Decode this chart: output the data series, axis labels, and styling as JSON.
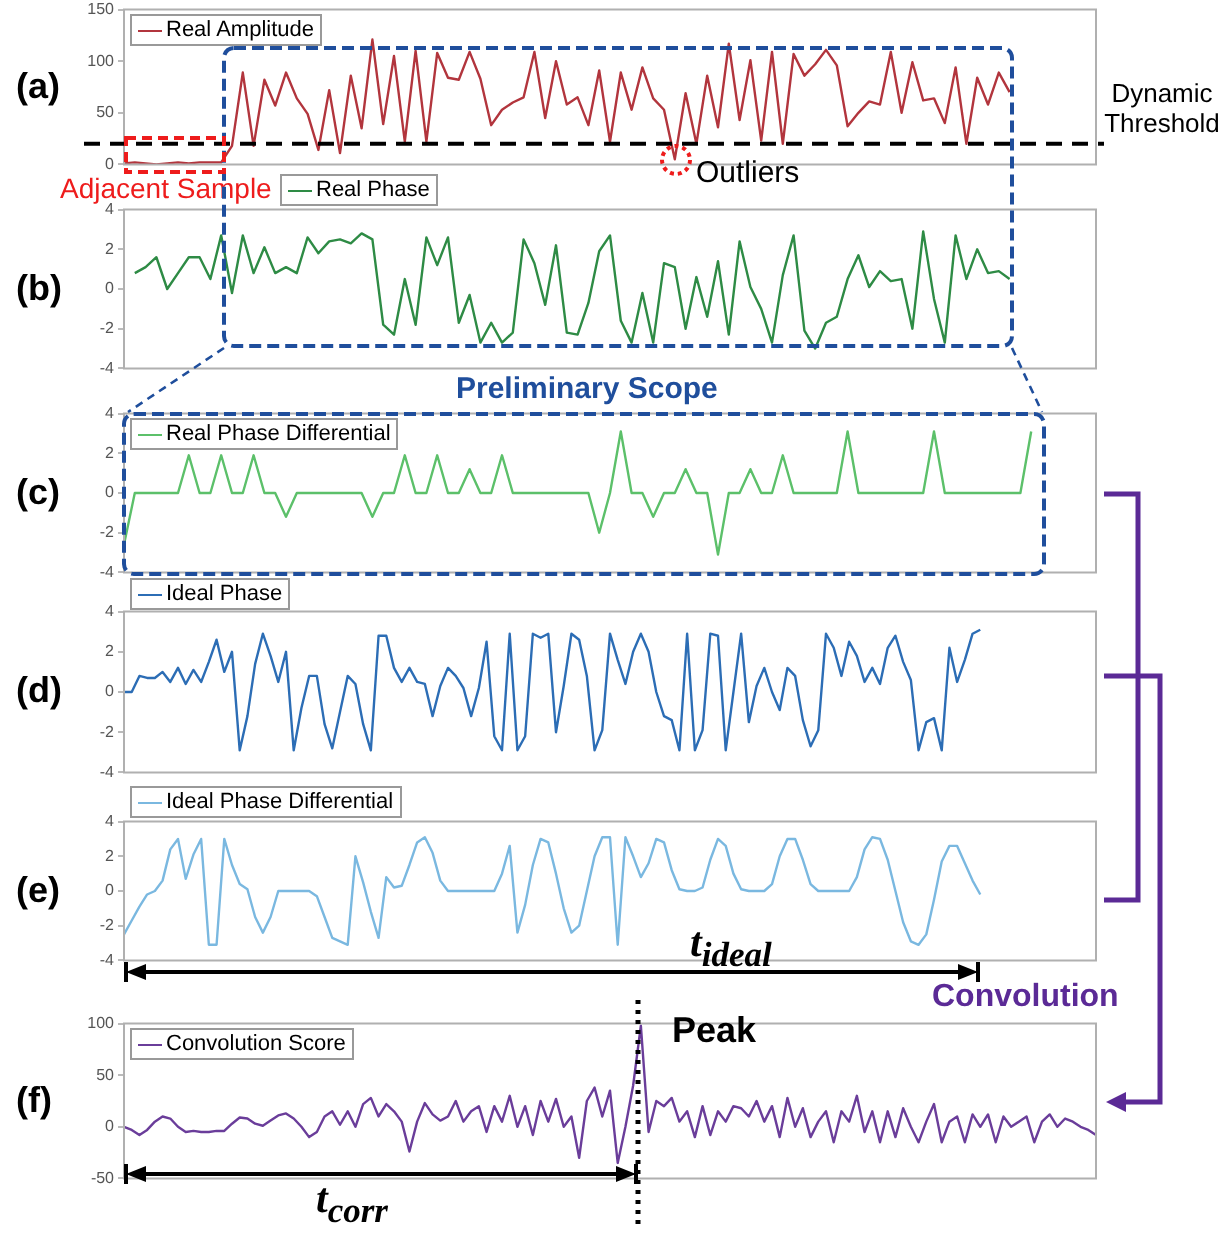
{
  "chart_data": [
    {
      "type": "line",
      "title": "(a)",
      "categories": [
        null,
        null,
        null,
        null,
        null,
        null,
        null,
        null,
        null,
        null,
        null,
        null,
        null,
        null,
        null,
        null,
        null,
        null,
        null,
        null,
        null,
        null,
        null,
        null,
        null,
        null,
        null,
        null,
        null,
        null,
        null,
        null,
        null,
        null,
        null,
        null,
        null,
        null,
        null,
        null,
        null,
        null,
        null,
        null,
        null,
        null,
        null,
        null,
        null,
        null,
        null,
        null,
        null,
        null,
        null,
        null,
        null,
        null,
        null,
        null,
        null,
        null,
        null,
        null,
        null,
        null,
        null,
        null,
        null,
        null,
        null,
        null,
        null,
        null,
        null,
        null,
        null,
        null,
        null,
        null,
        null,
        null,
        null,
        null,
        null,
        null,
        null,
        null,
        null,
        null,
        null
      ],
      "series": [
        {
          "name": "Real Amplitude",
          "color": "#b2353d",
          "values": [
            1,
            2,
            1,
            0,
            1,
            2,
            1,
            2,
            2,
            2,
            18,
            89,
            18,
            82,
            57,
            89,
            64,
            49,
            14,
            72,
            11,
            86,
            35,
            121,
            39,
            105,
            22,
            110,
            22,
            108,
            84,
            82,
            109,
            83,
            38,
            53,
            60,
            65,
            109,
            45,
            100,
            58,
            65,
            38,
            91,
            22,
            89,
            53,
            94,
            64,
            53,
            5,
            69,
            20,
            86,
            36,
            117,
            43,
            101,
            23,
            109,
            20,
            107,
            86,
            97,
            111,
            96,
            37,
            50,
            61,
            58,
            109,
            50,
            99,
            62,
            64,
            40,
            94,
            20,
            84,
            58,
            89,
            70,
            null,
            null,
            null,
            null,
            null,
            null,
            null,
            null
          ]
        }
      ],
      "ylim": [
        0,
        150
      ],
      "yticks": [
        0,
        50,
        100,
        150
      ],
      "legend": "top left",
      "tick_labels": "y",
      "ref_lines": [
        {
          "axis": "y",
          "value": 20,
          "label": "Dynamic Threshold",
          "color": "#000000",
          "line_style": "dashed"
        }
      ],
      "annotations": [
        "Adjacent Sample",
        "Outliers",
        "Preliminary Scope"
      ]
    },
    {
      "type": "line",
      "title": "(b)",
      "categories": [
        null,
        null,
        null,
        null,
        null,
        null,
        null,
        null,
        null,
        null,
        null,
        null,
        null,
        null,
        null,
        null,
        null,
        null,
        null,
        null,
        null,
        null,
        null,
        null,
        null,
        null,
        null,
        null,
        null,
        null,
        null,
        null,
        null,
        null,
        null,
        null,
        null,
        null,
        null,
        null,
        null,
        null,
        null,
        null,
        null,
        null,
        null,
        null,
        null,
        null,
        null,
        null,
        null,
        null,
        null,
        null,
        null,
        null,
        null,
        null,
        null,
        null,
        null,
        null,
        null,
        null,
        null,
        null,
        null,
        null,
        null,
        null,
        null,
        null,
        null,
        null,
        null,
        null,
        null,
        null,
        null,
        null,
        null,
        null,
        null,
        null,
        null,
        null,
        null,
        null,
        null
      ],
      "series": [
        {
          "name": "Real Phase",
          "color": "#2e8b45",
          "values": [
            null,
            0.8,
            1.1,
            1.6,
            0,
            0.8,
            1.6,
            1.6,
            0.5,
            2.7,
            -0.2,
            2.7,
            0.8,
            2.1,
            0.8,
            1.1,
            0.8,
            2.6,
            1.8,
            2.4,
            2.5,
            2.3,
            2.8,
            2.5,
            -1.8,
            -2.3,
            0.5,
            -1.8,
            2.6,
            1.2,
            2.6,
            -1.7,
            -0.3,
            -2.7,
            -1.7,
            -2.7,
            -2.2,
            2.5,
            1.3,
            -0.8,
            2.2,
            -2.2,
            -2.3,
            -0.7,
            1.9,
            2.7,
            -1.6,
            -2.7,
            -0.2,
            -2.7,
            1.3,
            1.1,
            -2,
            0.6,
            -1.4,
            1.4,
            -2.3,
            2.4,
            0.1,
            -1,
            -2.7,
            0.7,
            2.7,
            -2.1,
            -3,
            -1.7,
            -1.4,
            0.5,
            1.7,
            0.1,
            0.9,
            0.4,
            0.5,
            -2,
            2.9,
            -0.5,
            -2.7,
            2.7,
            0.5,
            2,
            0.8,
            0.9,
            0.5,
            null,
            null,
            null,
            null,
            null,
            null,
            null,
            null
          ]
        }
      ],
      "ylim": [
        -4,
        4
      ],
      "yticks": [
        -4,
        -2,
        0,
        2,
        4
      ],
      "legend": "top left",
      "tick_labels": "y"
    },
    {
      "type": "line",
      "title": "(c)",
      "categories": [
        null,
        null,
        null,
        null,
        null,
        null,
        null,
        null,
        null,
        null,
        null,
        null,
        null,
        null,
        null,
        null,
        null,
        null,
        null,
        null,
        null,
        null,
        null,
        null,
        null,
        null,
        null,
        null,
        null,
        null,
        null,
        null,
        null,
        null,
        null,
        null,
        null,
        null,
        null,
        null,
        null,
        null,
        null,
        null,
        null,
        null,
        null,
        null,
        null,
        null,
        null,
        null,
        null,
        null,
        null,
        null,
        null,
        null,
        null,
        null,
        null,
        null,
        null,
        null,
        null,
        null,
        null,
        null,
        null,
        null,
        null,
        null,
        null,
        null,
        null,
        null,
        null,
        null,
        null,
        null,
        null,
        null,
        null,
        null,
        null,
        null,
        null,
        null,
        null,
        null,
        null
      ],
      "series": [
        {
          "name": "Real Phase Differential",
          "color": "#5cc06a",
          "values": [
            -2.6,
            0,
            0,
            0,
            0,
            0,
            1.9,
            0,
            0,
            1.9,
            0,
            0,
            1.9,
            0,
            0,
            -1.2,
            0,
            0,
            0,
            0,
            0,
            0,
            0,
            -1.2,
            0,
            0,
            1.9,
            0,
            0,
            1.9,
            0,
            0,
            1.2,
            0,
            0,
            1.9,
            0,
            0,
            0,
            0,
            0,
            0,
            0,
            0,
            -2,
            0,
            3.1,
            0,
            0,
            -1.2,
            0,
            0,
            1.2,
            0,
            0,
            -3.1,
            0,
            0,
            1.2,
            0,
            0,
            1.9,
            0,
            0,
            0,
            0,
            0,
            3.1,
            0,
            0,
            0,
            0,
            0,
            0,
            0,
            3.1,
            0,
            0,
            0,
            0,
            0,
            0,
            0,
            0,
            3.1,
            null,
            null,
            null,
            null,
            null,
            null
          ]
        }
      ],
      "ylim": [
        -4,
        4
      ],
      "yticks": [
        -4,
        -2,
        0,
        2,
        4
      ],
      "legend": "top left",
      "tick_labels": "y"
    },
    {
      "type": "line",
      "title": "(d)",
      "categories": [
        null,
        null,
        null,
        null,
        null,
        null,
        null,
        null,
        null,
        null,
        null,
        null,
        null,
        null,
        null,
        null,
        null,
        null,
        null,
        null,
        null,
        null,
        null,
        null,
        null,
        null,
        null,
        null,
        null,
        null,
        null,
        null,
        null,
        null,
        null,
        null,
        null,
        null,
        null,
        null,
        null,
        null,
        null,
        null,
        null,
        null,
        null,
        null,
        null,
        null,
        null,
        null,
        null,
        null,
        null,
        null,
        null,
        null,
        null,
        null,
        null,
        null,
        null,
        null,
        null,
        null,
        null,
        null,
        null,
        null,
        null,
        null,
        null,
        null,
        null,
        null,
        null,
        null,
        null,
        null,
        null,
        null,
        null,
        null,
        null,
        null,
        null,
        null,
        null,
        null,
        null,
        null,
        null,
        null,
        null,
        null,
        null,
        null,
        null,
        null,
        null,
        null,
        null,
        null,
        null,
        null,
        null,
        null,
        null,
        null,
        null,
        null,
        null,
        null,
        null,
        null,
        null,
        null,
        null,
        null,
        null,
        null,
        null,
        null,
        null,
        null,
        null
      ],
      "series": [
        {
          "name": "Ideal Phase",
          "color": "#2c6db5",
          "values": [
            0,
            0,
            0.8,
            0.7,
            0.7,
            1,
            0.5,
            1.2,
            0.4,
            1.1,
            0.5,
            1.5,
            2.6,
            1,
            2,
            -2.9,
            -1.2,
            1.4,
            2.9,
            1.8,
            0.5,
            2,
            -2.9,
            -0.8,
            0.8,
            0.8,
            -1.6,
            -2.8,
            -1,
            0.8,
            0.4,
            -1.6,
            -2.9,
            2.8,
            2.8,
            1.2,
            0.5,
            1.2,
            0.5,
            0.4,
            -1.2,
            0.3,
            1.2,
            0.8,
            0.2,
            -1.2,
            0.2,
            2.5,
            -2.2,
            -2.9,
            2.9,
            -2.9,
            -2.2,
            2.9,
            2.7,
            2.9,
            -2,
            0.3,
            2.9,
            2.6,
            0.8,
            -2.9,
            -1.9,
            2.9,
            1.6,
            0.4,
            2,
            2.9,
            2,
            0,
            -1.2,
            -1.4,
            -2.9,
            2.9,
            -2.9,
            -1.9,
            2.9,
            2.8,
            -2.9,
            0,
            2.9,
            -1.5,
            0.3,
            1.2,
            0,
            -0.9,
            1.2,
            0.8,
            -1.4,
            -2.7,
            -1.9,
            2.9,
            2.2,
            0.8,
            2.5,
            1.8,
            0.5,
            1.2,
            0.4,
            2.2,
            2.8,
            1.5,
            0.6,
            -2.9,
            -1.5,
            -1.3,
            -2.9,
            2.2,
            0.5,
            1.6,
            2.9,
            3.1,
            null,
            null,
            null,
            null,
            null,
            null,
            null,
            null,
            null,
            null,
            null,
            null,
            null,
            null,
            null
          ]
        }
      ],
      "ylim": [
        -4,
        4
      ],
      "yticks": [
        -4,
        -2,
        0,
        2,
        4
      ],
      "legend": "top left",
      "tick_labels": "y"
    },
    {
      "type": "line",
      "title": "(e)",
      "categories": [
        null,
        null,
        null,
        null,
        null,
        null,
        null,
        null,
        null,
        null,
        null,
        null,
        null,
        null,
        null,
        null,
        null,
        null,
        null,
        null,
        null,
        null,
        null,
        null,
        null,
        null,
        null,
        null,
        null,
        null,
        null,
        null,
        null,
        null,
        null,
        null,
        null,
        null,
        null,
        null,
        null,
        null,
        null,
        null,
        null,
        null,
        null,
        null,
        null,
        null,
        null,
        null,
        null,
        null,
        null,
        null,
        null,
        null,
        null,
        null,
        null,
        null,
        null,
        null,
        null,
        null,
        null,
        null,
        null,
        null,
        null,
        null,
        null,
        null,
        null,
        null,
        null,
        null,
        null,
        null,
        null,
        null,
        null,
        null,
        null,
        null,
        null,
        null,
        null,
        null,
        null,
        null,
        null,
        null,
        null,
        null,
        null,
        null,
        null,
        null,
        null,
        null,
        null,
        null,
        null,
        null,
        null,
        null,
        null,
        null,
        null,
        null,
        null,
        null,
        null,
        null,
        null,
        null,
        null,
        null,
        null,
        null,
        null,
        null,
        null,
        null,
        null
      ],
      "series": [
        {
          "name": "Ideal Phase Differential",
          "color": "#7ab8e0",
          "values": [
            -2.5,
            -1.7,
            -0.9,
            -0.2,
            0,
            0.6,
            2.4,
            3,
            0.7,
            2.1,
            3,
            -3.1,
            -3.1,
            3,
            1.5,
            0.4,
            0.1,
            -1.5,
            -2.4,
            -1.5,
            0,
            0,
            0,
            0,
            0,
            -0.3,
            -1.5,
            -2.7,
            -2.9,
            -3.1,
            2,
            0.5,
            -1.2,
            -2.7,
            0.8,
            0.2,
            0.3,
            1.5,
            2.8,
            3.1,
            2.2,
            0.6,
            0,
            0,
            0,
            0,
            0,
            0,
            0,
            1,
            2.6,
            -2.4,
            -0.8,
            1.5,
            3,
            2.8,
            1,
            -1,
            -2.4,
            -2,
            0,
            2,
            3.1,
            3.1,
            -3.1,
            3.1,
            2,
            0.8,
            1.6,
            3,
            2.8,
            1.2,
            0.1,
            0,
            0,
            0.2,
            1.8,
            3,
            2.6,
            1,
            0.1,
            0,
            0,
            0,
            0.4,
            2,
            3,
            3,
            1.8,
            0.4,
            0,
            0,
            0,
            0,
            0,
            0.8,
            2.4,
            3.1,
            3,
            1.8,
            0,
            -1.8,
            -2.9,
            -3.1,
            -2.5,
            -0.5,
            1.7,
            2.6,
            2.6,
            1.6,
            0.6,
            -0.2,
            null,
            null,
            null,
            null,
            null,
            null,
            null,
            null,
            null,
            null,
            null,
            null,
            null,
            null,
            null
          ]
        }
      ],
      "ylim": [
        -4,
        4
      ],
      "yticks": [
        -4,
        -2,
        0,
        2,
        4
      ],
      "legend": "top left",
      "tick_labels": "y",
      "annotations": [
        "t$_{ideal}$"
      ]
    },
    {
      "type": "line",
      "title": "(f)",
      "categories": [
        null,
        null,
        null,
        null,
        null,
        null,
        null,
        null,
        null,
        null,
        null,
        null,
        null,
        null,
        null,
        null,
        null,
        null,
        null,
        null,
        null,
        null,
        null,
        null,
        null,
        null,
        null,
        null,
        null,
        null,
        null,
        null,
        null,
        null,
        null,
        null,
        null,
        null,
        null,
        null,
        null,
        null,
        null,
        null,
        null,
        null,
        null,
        null,
        null,
        null,
        null,
        null,
        null,
        null,
        null,
        null,
        null,
        null,
        null,
        null,
        null,
        null,
        null,
        null,
        null,
        null,
        null,
        null,
        null,
        null,
        null,
        null,
        null,
        null,
        null,
        null,
        null,
        null,
        null,
        null,
        null,
        null,
        null,
        null,
        null,
        null,
        null,
        null,
        null,
        null,
        null,
        null,
        null,
        null,
        null,
        null,
        null,
        null,
        null,
        null,
        null,
        null,
        null,
        null,
        null,
        null,
        null,
        null,
        null,
        null,
        null,
        null,
        null,
        null,
        null,
        null,
        null,
        null,
        null,
        null,
        null,
        null,
        null,
        null,
        null,
        null,
        null
      ],
      "series": [
        {
          "name": "Convolution Score",
          "color": "#6a3d9a",
          "values": [
            0,
            -3,
            -8,
            -3,
            5,
            10,
            8,
            0,
            -5,
            -4,
            -5,
            -5,
            -4,
            -4,
            3,
            9,
            8,
            3,
            1,
            6,
            11,
            13,
            8,
            0,
            -10,
            -5,
            10,
            15,
            2,
            15,
            0,
            22,
            28,
            10,
            22,
            15,
            5,
            -24,
            5,
            23,
            12,
            6,
            10,
            25,
            5,
            15,
            20,
            -5,
            20,
            5,
            30,
            0,
            20,
            -8,
            25,
            5,
            27,
            0,
            10,
            -30,
            25,
            38,
            10,
            35,
            -35,
            0,
            40,
            98,
            -5,
            25,
            20,
            28,
            5,
            15,
            -10,
            20,
            -8,
            15,
            5,
            20,
            18,
            10,
            25,
            5,
            20,
            -10,
            28,
            0,
            18,
            -10,
            5,
            15,
            -15,
            15,
            5,
            30,
            -5,
            15,
            -15,
            15,
            -10,
            18,
            0,
            -15,
            5,
            22,
            -15,
            5,
            10,
            -15,
            12,
            0,
            12,
            -15,
            10,
            0,
            5,
            10,
            -15,
            5,
            12,
            0,
            8,
            5,
            0,
            -3,
            -8
          ]
        }
      ],
      "ylim": [
        -50,
        100
      ],
      "yticks": [
        -50,
        0,
        50,
        100
      ],
      "legend": "top left",
      "tick_labels": "y",
      "annotations": [
        "Convolution",
        "Peak",
        "t$_{corr}$"
      ]
    }
  ]
}
